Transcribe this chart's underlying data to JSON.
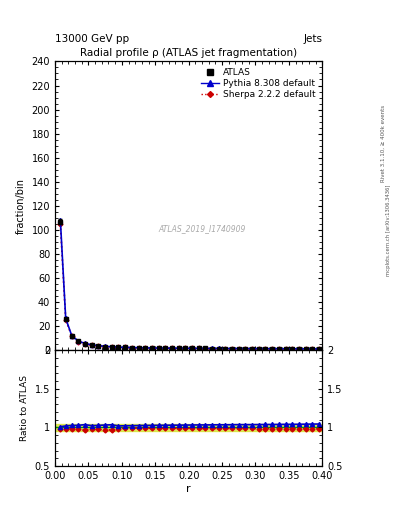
{
  "title": "Radial profile ρ (ATLAS jet fragmentation)",
  "top_left_label": "13000 GeV pp",
  "top_right_label": "Jets",
  "right_label_line1": "Rivet 3.1.10, ≥ 400k events",
  "right_label_line2": "mcplots.cern.ch [arXiv:1306.3436]",
  "watermark": "ATLAS_2019_I1740909",
  "ylabel_main": "fraction/bin",
  "ylabel_ratio": "Ratio to ATLAS",
  "xlabel": "r",
  "xlim": [
    0.0,
    0.4
  ],
  "ylim_main": [
    0,
    240
  ],
  "ylim_ratio": [
    0.5,
    2.0
  ],
  "yticks_main": [
    0,
    20,
    40,
    60,
    80,
    100,
    120,
    140,
    160,
    180,
    200,
    220,
    240
  ],
  "yticks_ratio": [
    0.5,
    1.0,
    1.5,
    2.0
  ],
  "r_values": [
    0.008,
    0.016,
    0.025,
    0.035,
    0.045,
    0.055,
    0.065,
    0.075,
    0.085,
    0.095,
    0.105,
    0.115,
    0.125,
    0.135,
    0.145,
    0.155,
    0.165,
    0.175,
    0.185,
    0.195,
    0.205,
    0.215,
    0.225,
    0.235,
    0.245,
    0.255,
    0.265,
    0.275,
    0.285,
    0.295,
    0.305,
    0.315,
    0.325,
    0.335,
    0.345,
    0.355,
    0.365,
    0.375,
    0.385,
    0.395
  ],
  "atlas_values": [
    107,
    26,
    12,
    7.5,
    5.5,
    4.5,
    3.8,
    3.2,
    2.9,
    2.6,
    2.4,
    2.3,
    2.1,
    2.0,
    1.9,
    1.85,
    1.8,
    1.75,
    1.7,
    1.65,
    1.62,
    1.58,
    1.55,
    1.52,
    1.5,
    1.47,
    1.45,
    1.43,
    1.4,
    1.38,
    1.36,
    1.33,
    1.31,
    1.29,
    1.26,
    1.24,
    1.21,
    1.19,
    1.17,
    1.14
  ],
  "atlas_errors": [
    2,
    0.5,
    0.3,
    0.2,
    0.15,
    0.12,
    0.1,
    0.08,
    0.07,
    0.06,
    0.05,
    0.05,
    0.05,
    0.04,
    0.04,
    0.04,
    0.04,
    0.03,
    0.03,
    0.03,
    0.03,
    0.03,
    0.03,
    0.03,
    0.03,
    0.03,
    0.03,
    0.03,
    0.03,
    0.03,
    0.03,
    0.03,
    0.03,
    0.03,
    0.03,
    0.03,
    0.03,
    0.03,
    0.03,
    0.03
  ],
  "pythia_values": [
    108,
    26.5,
    12.3,
    7.7,
    5.7,
    4.6,
    3.9,
    3.3,
    3.0,
    2.65,
    2.45,
    2.35,
    2.15,
    2.05,
    1.95,
    1.9,
    1.85,
    1.8,
    1.75,
    1.7,
    1.67,
    1.63,
    1.6,
    1.57,
    1.55,
    1.52,
    1.5,
    1.48,
    1.45,
    1.43,
    1.41,
    1.38,
    1.36,
    1.34,
    1.31,
    1.29,
    1.26,
    1.24,
    1.22,
    1.19
  ],
  "sherpa_values": [
    105,
    25.5,
    11.8,
    7.3,
    5.3,
    4.4,
    3.7,
    3.1,
    2.8,
    2.55,
    2.38,
    2.28,
    2.08,
    1.98,
    1.88,
    1.83,
    1.78,
    1.73,
    1.68,
    1.63,
    1.6,
    1.56,
    1.53,
    1.5,
    1.48,
    1.45,
    1.43,
    1.41,
    1.38,
    1.36,
    1.34,
    1.31,
    1.29,
    1.27,
    1.24,
    1.22,
    1.19,
    1.17,
    1.15,
    1.12
  ],
  "pythia_ratio": [
    1.009,
    1.019,
    1.025,
    1.027,
    1.036,
    1.022,
    1.026,
    1.031,
    1.034,
    1.019,
    1.021,
    1.022,
    1.024,
    1.025,
    1.026,
    1.027,
    1.028,
    1.029,
    1.029,
    1.03,
    1.031,
    1.032,
    1.032,
    1.033,
    1.034,
    1.034,
    1.035,
    1.036,
    1.036,
    1.036,
    1.037,
    1.038,
    1.038,
    1.039,
    1.04,
    1.04,
    1.041,
    1.042,
    1.043,
    1.044
  ],
  "sherpa_ratio": [
    0.981,
    0.981,
    0.983,
    0.973,
    0.964,
    0.978,
    0.974,
    0.969,
    0.966,
    0.981,
    0.992,
    0.991,
    0.99,
    0.99,
    0.989,
    0.989,
    0.989,
    0.989,
    0.988,
    0.988,
    0.988,
    0.987,
    0.987,
    0.987,
    0.987,
    0.986,
    0.986,
    0.986,
    0.986,
    0.986,
    0.985,
    0.985,
    0.985,
    0.985,
    0.984,
    0.984,
    0.983,
    0.983,
    0.983,
    0.982
  ],
  "atlas_color": "#000000",
  "pythia_color": "#0000cc",
  "sherpa_color": "#cc0000",
  "ratio_band_color": "#ccdd00",
  "ratio_line_color": "#009900",
  "background_color": "#ffffff"
}
